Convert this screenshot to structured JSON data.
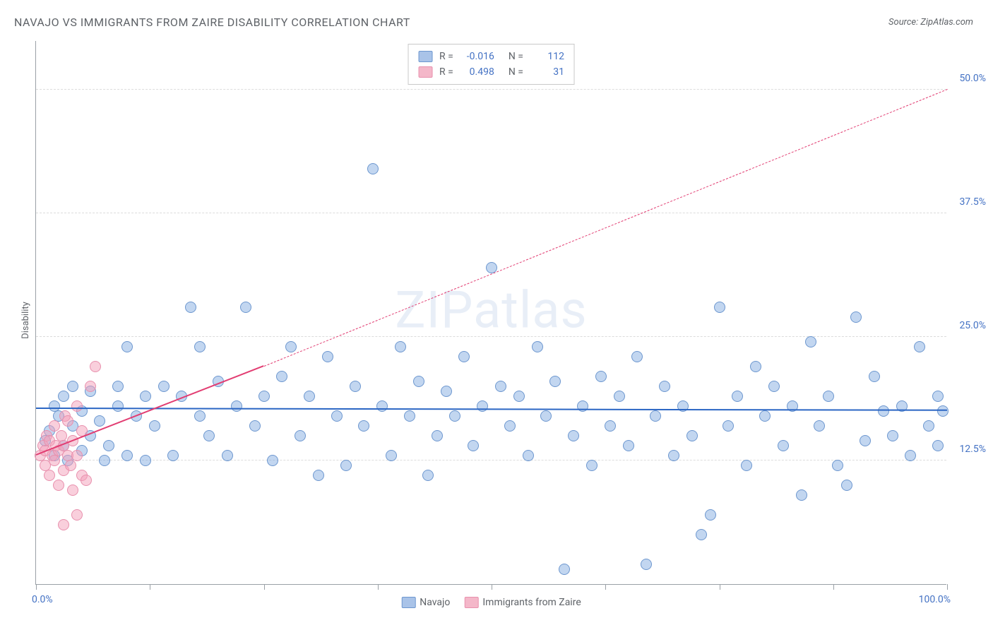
{
  "title": "NAVAJO VS IMMIGRANTS FROM ZAIRE DISABILITY CORRELATION CHART",
  "source": "Source: ZipAtlas.com",
  "ylabel": "Disability",
  "watermark": "ZIPatlas",
  "chart": {
    "type": "scatter",
    "xlim": [
      0,
      100
    ],
    "ylim": [
      0,
      55
    ],
    "x_ticks": [
      0,
      12.5,
      25,
      37.5,
      50,
      62.5,
      75,
      87.5,
      100
    ],
    "x_tick_labels": {
      "0": "0.0%",
      "100": "100.0%"
    },
    "y_gridlines": [
      12.5,
      25,
      37.5,
      50
    ],
    "y_tick_labels": {
      "12.5": "12.5%",
      "25": "25.0%",
      "37.5": "37.5%",
      "50": "50.0%"
    },
    "background_color": "#ffffff",
    "grid_color": "#dcdcdc",
    "axis_color": "#9aa0a6",
    "marker_radius": 8,
    "marker_stroke_width": 1.2,
    "series": [
      {
        "name": "Navajo",
        "fill_color": "rgba(120,163,221,0.45)",
        "stroke_color": "#6d97cf",
        "swatch_color": "#a9c3e8",
        "R": "-0.016",
        "N": "112",
        "trend": {
          "x1": 0,
          "y1": 17.7,
          "x2": 100,
          "y2": 17.5,
          "color": "#2b66c4",
          "width": 2.5,
          "dash": "none",
          "dash_ext": null
        },
        "points": [
          [
            1,
            14.5
          ],
          [
            1.5,
            15.5
          ],
          [
            2,
            13
          ],
          [
            2,
            18
          ],
          [
            2.5,
            17
          ],
          [
            3,
            14
          ],
          [
            3,
            19
          ],
          [
            3.5,
            12.5
          ],
          [
            4,
            16
          ],
          [
            4,
            20
          ],
          [
            5,
            13.5
          ],
          [
            5,
            17.5
          ],
          [
            6,
            19.5
          ],
          [
            6,
            15
          ],
          [
            7,
            16.5
          ],
          [
            7.5,
            12.5
          ],
          [
            8,
            14
          ],
          [
            9,
            20
          ],
          [
            9,
            18
          ],
          [
            10,
            13
          ],
          [
            10,
            24
          ],
          [
            11,
            17
          ],
          [
            12,
            19
          ],
          [
            12,
            12.5
          ],
          [
            13,
            16
          ],
          [
            14,
            20
          ],
          [
            15,
            13
          ],
          [
            16,
            19
          ],
          [
            17,
            28
          ],
          [
            18,
            17
          ],
          [
            18,
            24
          ],
          [
            19,
            15
          ],
          [
            20,
            20.5
          ],
          [
            21,
            13
          ],
          [
            22,
            18
          ],
          [
            23,
            28
          ],
          [
            24,
            16
          ],
          [
            25,
            19
          ],
          [
            26,
            12.5
          ],
          [
            27,
            21
          ],
          [
            28,
            24
          ],
          [
            29,
            15
          ],
          [
            30,
            19
          ],
          [
            31,
            11
          ],
          [
            32,
            23
          ],
          [
            33,
            17
          ],
          [
            34,
            12
          ],
          [
            35,
            20
          ],
          [
            36,
            16
          ],
          [
            37,
            42
          ],
          [
            38,
            18
          ],
          [
            39,
            13
          ],
          [
            40,
            24
          ],
          [
            41,
            17
          ],
          [
            42,
            20.5
          ],
          [
            43,
            11
          ],
          [
            44,
            15
          ],
          [
            45,
            19.5
          ],
          [
            46,
            17
          ],
          [
            47,
            23
          ],
          [
            48,
            14
          ],
          [
            49,
            18
          ],
          [
            50,
            32
          ],
          [
            51,
            20
          ],
          [
            52,
            16
          ],
          [
            53,
            19
          ],
          [
            54,
            13
          ],
          [
            55,
            24
          ],
          [
            56,
            17
          ],
          [
            57,
            20.5
          ],
          [
            58,
            1.5
          ],
          [
            59,
            15
          ],
          [
            60,
            18
          ],
          [
            61,
            12
          ],
          [
            62,
            21
          ],
          [
            63,
            16
          ],
          [
            64,
            19
          ],
          [
            65,
            14
          ],
          [
            66,
            23
          ],
          [
            67,
            2
          ],
          [
            68,
            17
          ],
          [
            69,
            20
          ],
          [
            70,
            13
          ],
          [
            71,
            18
          ],
          [
            72,
            15
          ],
          [
            73,
            5
          ],
          [
            74,
            7
          ],
          [
            75,
            28
          ],
          [
            76,
            16
          ],
          [
            77,
            19
          ],
          [
            78,
            12
          ],
          [
            79,
            22
          ],
          [
            80,
            17
          ],
          [
            81,
            20
          ],
          [
            82,
            14
          ],
          [
            83,
            18
          ],
          [
            84,
            9
          ],
          [
            85,
            24.5
          ],
          [
            86,
            16
          ],
          [
            87,
            19
          ],
          [
            88,
            12
          ],
          [
            89,
            10
          ],
          [
            90,
            27
          ],
          [
            91,
            14.5
          ],
          [
            92,
            21
          ],
          [
            93,
            17.5
          ],
          [
            94,
            15
          ],
          [
            95,
            18
          ],
          [
            96,
            13
          ],
          [
            97,
            24
          ],
          [
            98,
            16
          ],
          [
            99,
            19
          ],
          [
            99,
            14
          ],
          [
            99.5,
            17.5
          ]
        ]
      },
      {
        "name": "Immigrants from Zaire",
        "fill_color": "rgba(244,160,186,0.5)",
        "stroke_color": "#e890ad",
        "swatch_color": "#f4b7c9",
        "R": "0.498",
        "N": "31",
        "trend": {
          "x1": 0,
          "y1": 13,
          "x2": 25,
          "y2": 22,
          "color": "#e23d72",
          "width": 2.5,
          "dash": "none",
          "dash_ext": {
            "x2": 100,
            "y2": 50,
            "dash": "6,6",
            "width": 1.2
          }
        },
        "points": [
          [
            0.5,
            13
          ],
          [
            0.8,
            14
          ],
          [
            1,
            12
          ],
          [
            1,
            13.5
          ],
          [
            1.2,
            15
          ],
          [
            1.5,
            11
          ],
          [
            1.5,
            14.5
          ],
          [
            1.8,
            13
          ],
          [
            2,
            12.5
          ],
          [
            2,
            16
          ],
          [
            2.2,
            14
          ],
          [
            2.5,
            10
          ],
          [
            2.5,
            13.5
          ],
          [
            2.8,
            15
          ],
          [
            3,
            11.5
          ],
          [
            3,
            14
          ],
          [
            3.2,
            17
          ],
          [
            3.5,
            13
          ],
          [
            3.5,
            16.5
          ],
          [
            3.8,
            12
          ],
          [
            4,
            14.5
          ],
          [
            4,
            9.5
          ],
          [
            4.5,
            18
          ],
          [
            4.5,
            13
          ],
          [
            5,
            15.5
          ],
          [
            5,
            11
          ],
          [
            5.5,
            10.5
          ],
          [
            6,
            20
          ],
          [
            6.5,
            22
          ],
          [
            3,
            6
          ],
          [
            4.5,
            7
          ]
        ]
      }
    ]
  },
  "legend_top": {
    "rows": [
      {
        "swatch_idx": 0,
        "r_label": "R =",
        "n_label": "N ="
      },
      {
        "swatch_idx": 1,
        "r_label": "R =",
        "n_label": "N ="
      }
    ]
  },
  "legend_bottom": {
    "items": [
      {
        "swatch_idx": 0
      },
      {
        "swatch_idx": 1
      }
    ]
  }
}
